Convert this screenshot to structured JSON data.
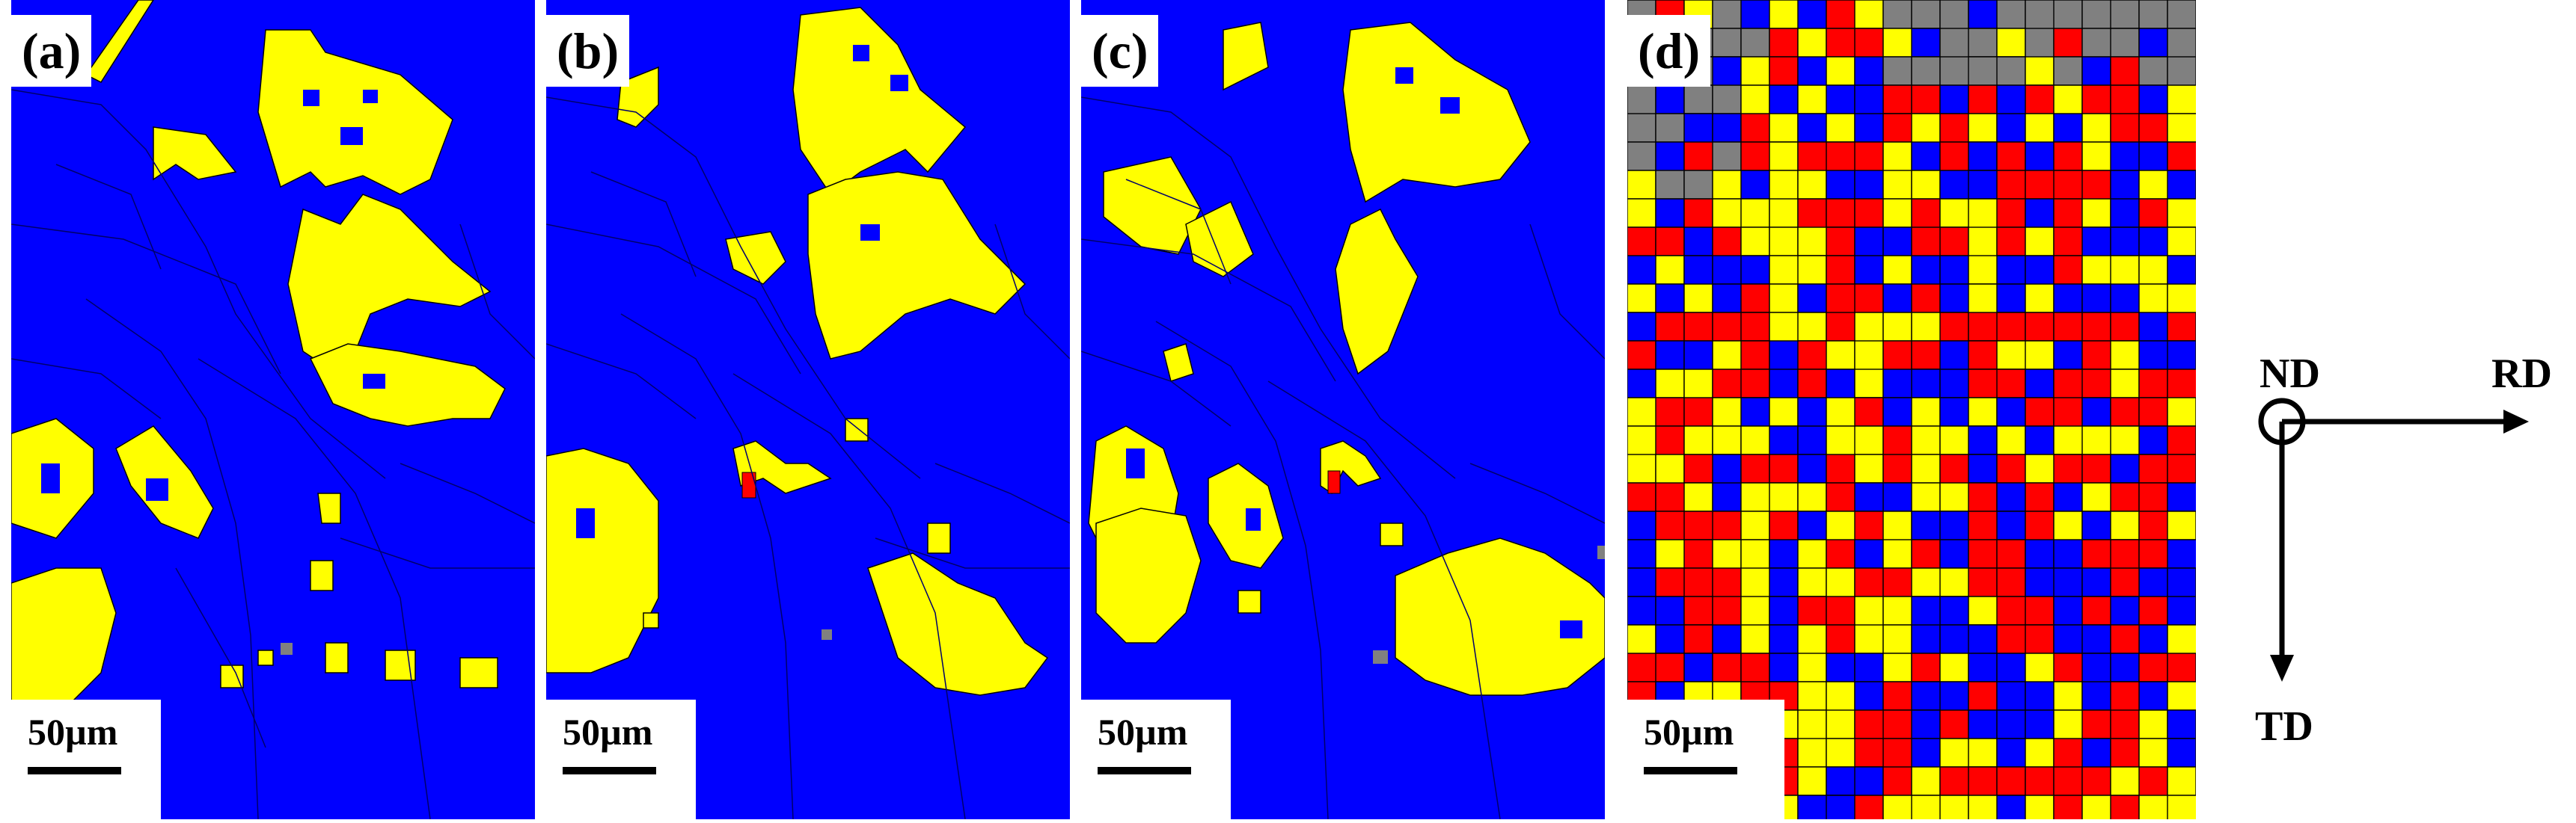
{
  "colors": {
    "blue": "#0000ff",
    "yellow": "#ffff00",
    "red": "#ff0000",
    "gray": "#808080",
    "boundary": "#000000"
  },
  "panels": [
    {
      "label": "(a)",
      "scale": "50µm"
    },
    {
      "label": "(b)",
      "scale": "50µm"
    },
    {
      "label": "(c)",
      "scale": "50µm"
    },
    {
      "label": "(d)",
      "scale": "50µm"
    }
  ],
  "axes": {
    "normal": "ND",
    "rolling": "RD",
    "transverse": "TD"
  }
}
